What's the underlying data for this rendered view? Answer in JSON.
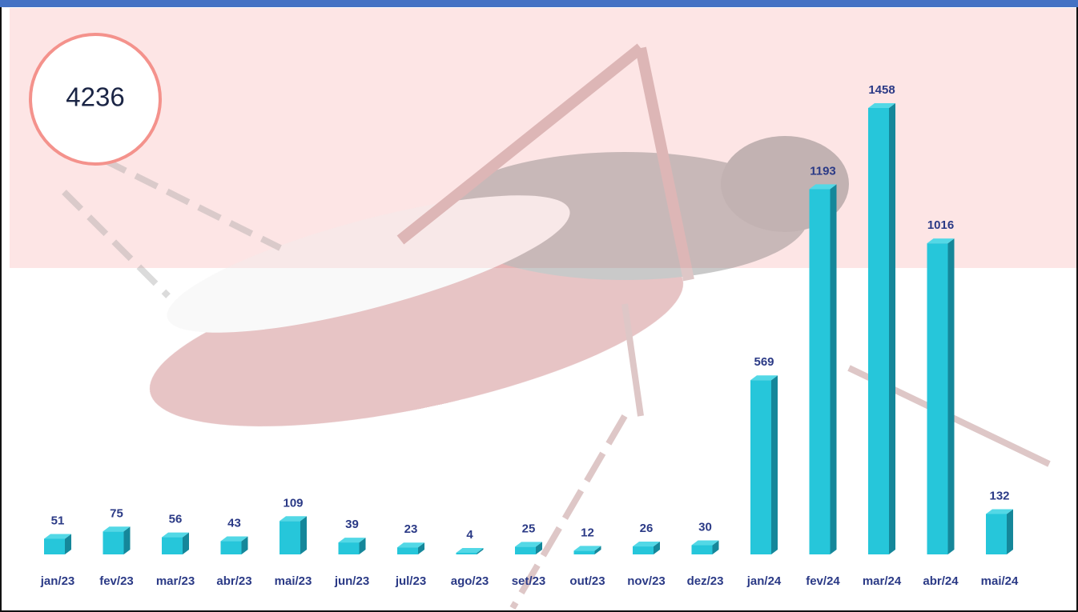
{
  "chart_data": {
    "type": "bar",
    "title": "4236",
    "categories": [
      "jan/23",
      "fev/23",
      "mar/23",
      "abr/23",
      "mai/23",
      "jun/23",
      "jul/23",
      "ago/23",
      "set/23",
      "out/23",
      "nov/23",
      "dez/23",
      "jan/24",
      "fev/24",
      "mar/24",
      "abr/24",
      "mai/24"
    ],
    "values": [
      51,
      75,
      56,
      43,
      109,
      39,
      23,
      4,
      25,
      12,
      26,
      30,
      569,
      1193,
      1458,
      1016,
      132
    ],
    "color": "#26c6da"
  }
}
